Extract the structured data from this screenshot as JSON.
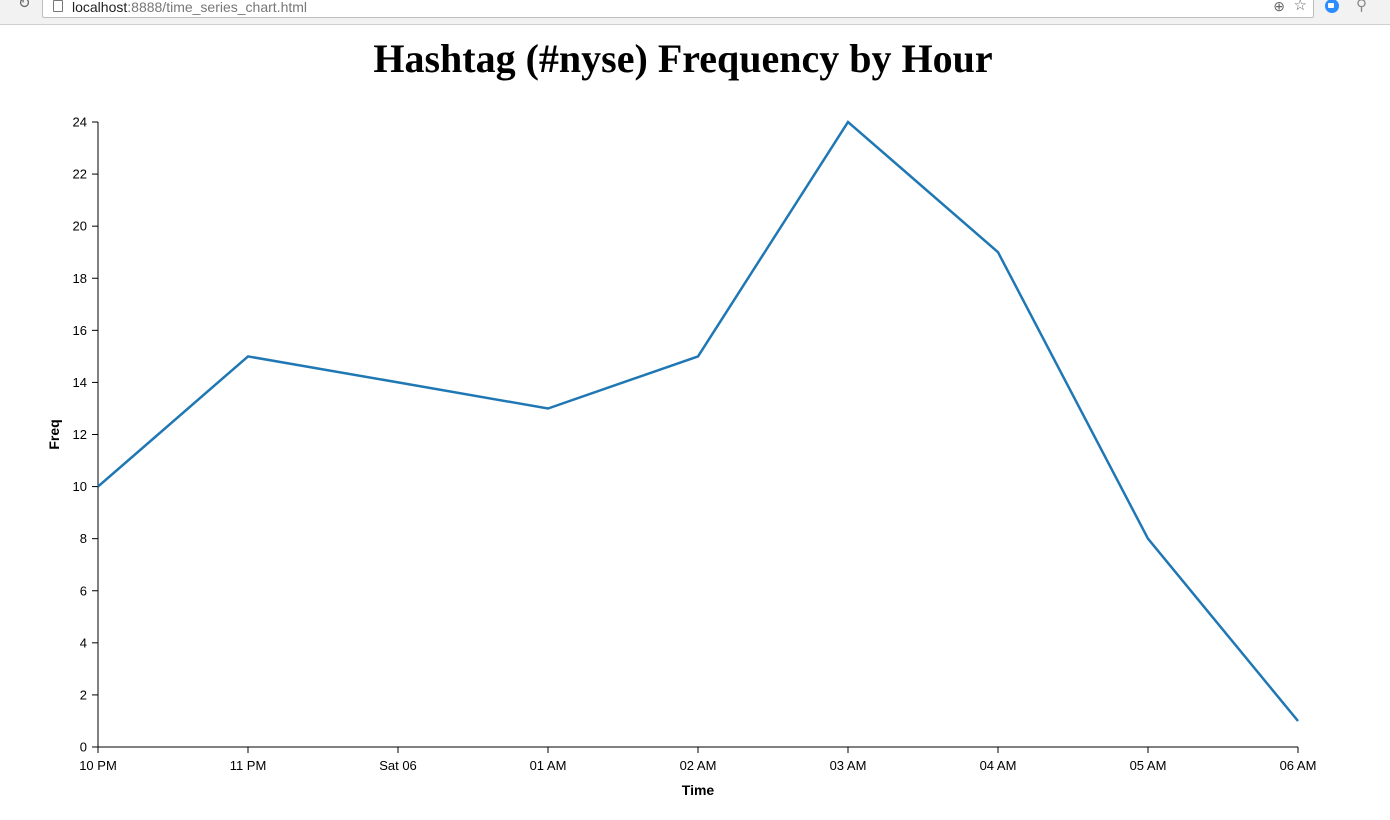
{
  "browser": {
    "url_host": "localhost",
    "url_rest": ":8888/time_series_chart.html"
  },
  "chart_data": {
    "type": "line",
    "title": "Hashtag (#nyse) Frequency by Hour",
    "xlabel": "Time",
    "ylabel": "Freq",
    "categories": [
      "10 PM",
      "11 PM",
      "Sat 06",
      "01 AM",
      "02 AM",
      "03 AM",
      "04 AM",
      "05 AM",
      "06 AM"
    ],
    "values": [
      10,
      15,
      14,
      13,
      15,
      24,
      19,
      8,
      1
    ],
    "ylim": [
      0,
      24
    ],
    "y_ticks": [
      0,
      2,
      4,
      6,
      8,
      10,
      12,
      14,
      16,
      18,
      20,
      22,
      24
    ],
    "grid": false,
    "line_color": "#1f77b4"
  }
}
